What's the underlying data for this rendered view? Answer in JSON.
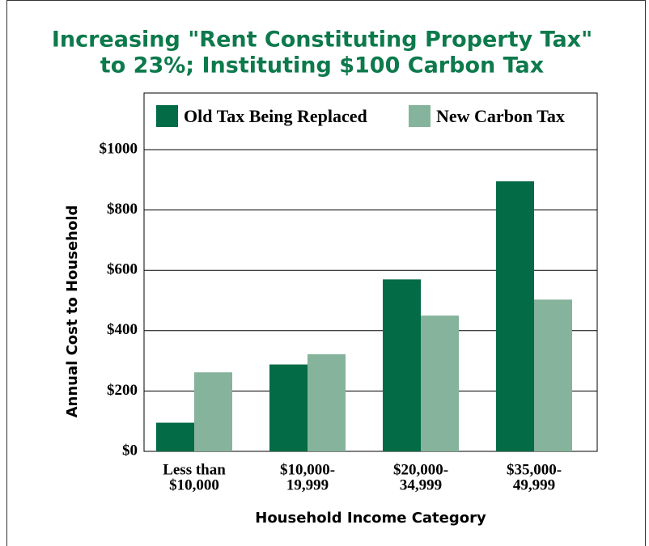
{
  "chart_data": {
    "type": "bar",
    "title": [
      "Increasing \"Rent Constituting Property Tax\"",
      "to 23%; Instituting $100 Carbon Tax"
    ],
    "x_label": "Household Income Category",
    "y_label": "Annual Cost to Household",
    "categories": [
      [
        "Less than",
        "$10,000"
      ],
      [
        "$10,000-",
        "19,999"
      ],
      [
        "$20,000-",
        "34,999"
      ],
      [
        "$35,000-",
        "49,999"
      ]
    ],
    "series": [
      {
        "name": "Old Tax Being Replaced",
        "color": "#036b46",
        "values": [
          95,
          288,
          570,
          895
        ]
      },
      {
        "name": "New Carbon Tax",
        "color": "#86b39b",
        "values": [
          262,
          322,
          450,
          503
        ]
      }
    ],
    "ylim": [
      0,
      1000
    ],
    "yticks": [
      {
        "value": 0,
        "label": "$0"
      },
      {
        "value": 200,
        "label": "$200"
      },
      {
        "value": 400,
        "label": "$400"
      },
      {
        "value": 600,
        "label": "$600"
      },
      {
        "value": 800,
        "label": "$800"
      },
      {
        "value": 1000,
        "label": "$1000"
      }
    ],
    "grid": true,
    "legend": "top"
  }
}
